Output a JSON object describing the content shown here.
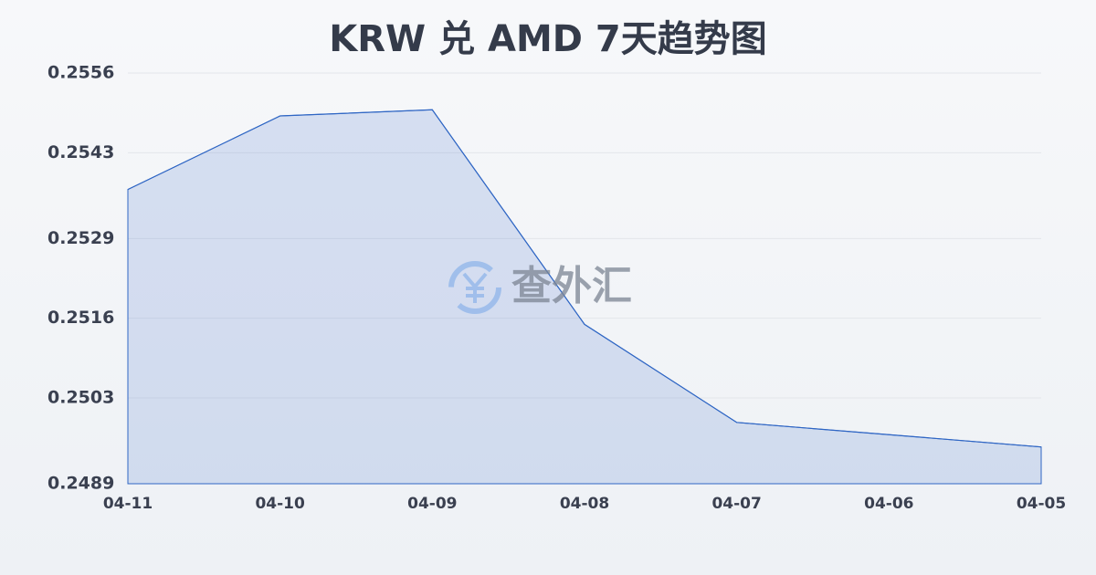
{
  "chart_data": {
    "type": "area",
    "title": "KRW 兑 AMD 7天趋势图",
    "categories": [
      "04-11",
      "04-10",
      "04-09",
      "04-08",
      "04-07",
      "04-06",
      "04-05"
    ],
    "values": [
      0.2537,
      0.2549,
      0.255,
      0.2515,
      0.2499,
      0.2497,
      0.2495
    ],
    "color": "#2f66c4",
    "ylim": [
      0.2489,
      0.2556
    ],
    "yticks": [
      0.2489,
      0.2503,
      0.2516,
      0.2529,
      0.2543,
      0.2556
    ],
    "grid": true,
    "watermark": "查外汇"
  }
}
